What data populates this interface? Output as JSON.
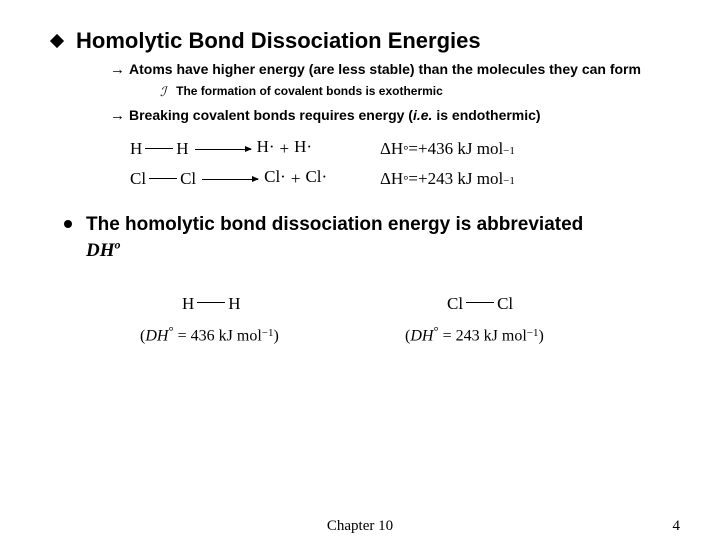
{
  "title": "Homolytic Bond Dissociation Energies",
  "sub_atoms": "Atoms have higher energy (are less stable) than the molecules they can form",
  "sub_formation": "The formation of covalent bonds is exothermic",
  "sub_breaking_a": "Breaking covalent bonds requires energy (",
  "sub_breaking_ie": "i.e.",
  "sub_breaking_b": " is endothermic)",
  "eq1": {
    "lhs_a": "H",
    "lhs_b": "H",
    "rhs_a": "H·",
    "plus": "+",
    "rhs_b": "H·",
    "dh_label": "ΔH",
    "deg": "°",
    "eq": " = ",
    "val": "+436 kJ mol",
    "unit_sup": "−1"
  },
  "eq2": {
    "lhs_a": "Cl",
    "lhs_b": "Cl",
    "rhs_a": "Cl·",
    "plus": "+",
    "rhs_b": "Cl·",
    "dh_label": "ΔH",
    "deg": "°",
    "eq": " = ",
    "val": "+243 kJ mol",
    "unit_sup": "−1"
  },
  "bullet2": "The homolytic bond dissociation energy is abbreviated",
  "dho_D": "D",
  "dho_H": "H",
  "dho_o": "o",
  "mol1": {
    "a": "H",
    "b": "H",
    "line_open": "(",
    "dh": "DH",
    "deg": "°",
    "eq": " = 436 kJ mol",
    "sup": "−1",
    "close": ")"
  },
  "mol2": {
    "a": "Cl",
    "b": "Cl",
    "line_open": "(",
    "dh": "DH",
    "deg": "°",
    "eq": " = 243 kJ mol",
    "sup": "−1",
    "close": ")"
  },
  "footer": {
    "chapter": "Chapter 10",
    "page": "4"
  }
}
